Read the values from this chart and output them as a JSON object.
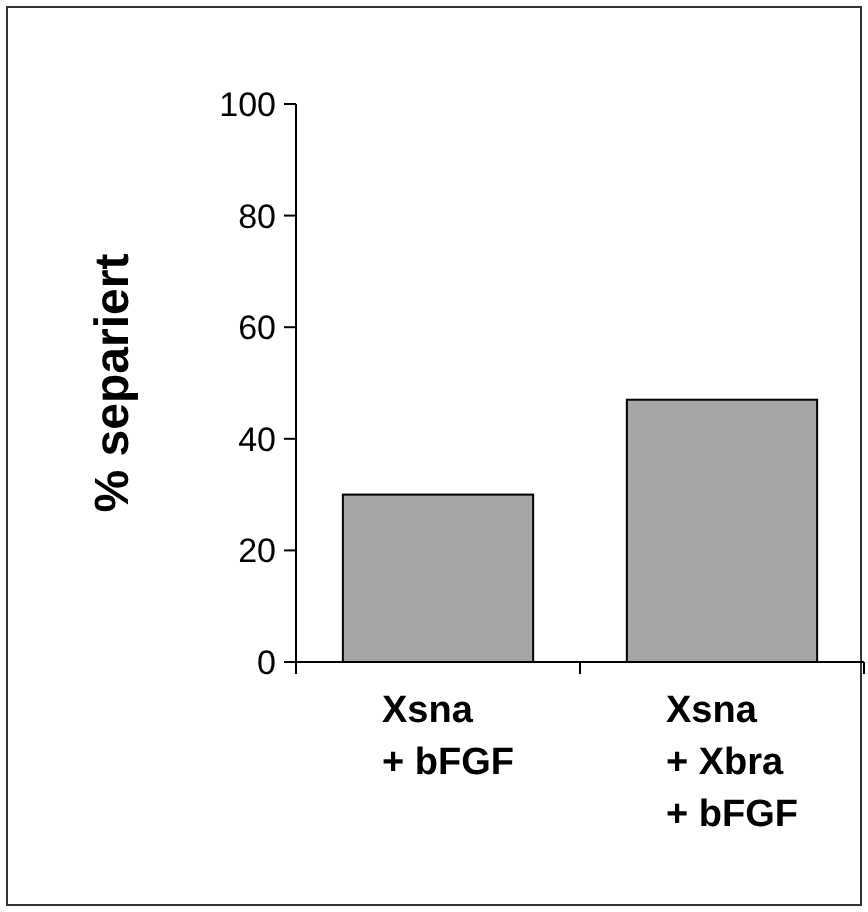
{
  "chart_data": {
    "type": "bar",
    "ylabel": "% separiert",
    "categories": [
      "Xsna\n+ bFGF",
      "Xsna\n+ Xbra\n+ bFGF"
    ],
    "values": [
      30,
      47
    ],
    "color": "#a6a6a6",
    "ylim": [
      0,
      100
    ],
    "yticks": [
      0,
      20,
      40,
      60,
      80,
      100
    ],
    "grid": false
  }
}
